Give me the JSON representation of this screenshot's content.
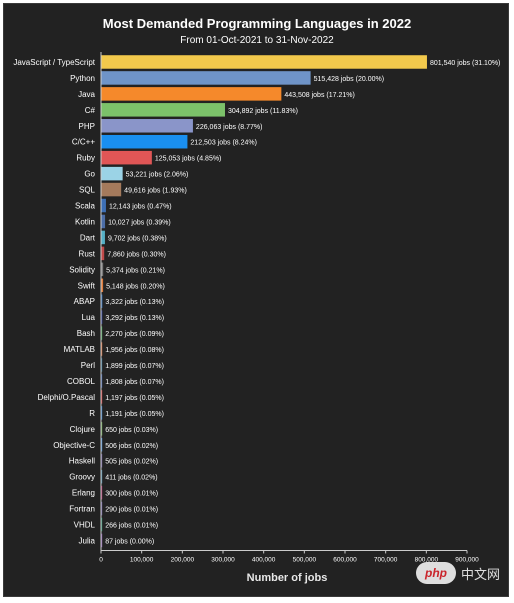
{
  "chart_data": {
    "type": "bar",
    "orientation": "horizontal",
    "title": "Most Demanded Programming Languages in 2022",
    "subtitle": "From 01-Oct-2021 to 31-Nov-2022",
    "xlabel": "Number of jobs",
    "ylabel": "",
    "xlim": [
      0,
      900000
    ],
    "xticks": [
      0,
      100000,
      200000,
      300000,
      400000,
      500000,
      600000,
      700000,
      800000,
      900000
    ],
    "xtick_labels": [
      "0",
      "100,000",
      "200,000",
      "300,000",
      "400,000",
      "500,000",
      "600,000",
      "700,000",
      "800,000",
      "900,000"
    ],
    "grid": false,
    "legend": "none",
    "categories": [
      "JavaScript / TypeScript",
      "Python",
      "Java",
      "C#",
      "PHP",
      "C/C++",
      "Ruby",
      "Go",
      "SQL",
      "Scala",
      "Kotlin",
      "Dart",
      "Rust",
      "Solidity",
      "Swift",
      "ABAP",
      "Lua",
      "Bash",
      "MATLAB",
      "Perl",
      "COBOL",
      "Delphi/O.Pascal",
      "R",
      "Clojure",
      "Objective-C",
      "Haskell",
      "Groovy",
      "Erlang",
      "Fortran",
      "VHDL",
      "Julia"
    ],
    "values": [
      801540,
      515428,
      443508,
      304892,
      226063,
      212503,
      125053,
      53221,
      49616,
      12143,
      10027,
      9702,
      7860,
      5374,
      5148,
      3322,
      3292,
      2270,
      1956,
      1899,
      1808,
      1197,
      1191,
      650,
      506,
      505,
      411,
      300,
      290,
      266,
      87
    ],
    "data_labels": [
      "801,540 jobs (31.10%)",
      "515,428 jobs (20.00%)",
      "443,508 jobs (17.21%)",
      "304,892 jobs (11.83%)",
      "226,063 jobs (8.77%)",
      "212,503 jobs (8.24%)",
      "125,053 jobs (4.85%)",
      "53,221 jobs (2.06%)",
      "49,616 jobs (1.93%)",
      "12,143 jobs (0.47%)",
      "10,027 jobs (0.39%)",
      "9,702 jobs (0.38%)",
      "7,860 jobs (0.30%)",
      "5,374 jobs (0.21%)",
      "5,148 jobs (0.20%)",
      "3,322 jobs (0.13%)",
      "3,292 jobs (0.13%)",
      "2,270 jobs (0.09%)",
      "1,956 jobs (0.08%)",
      "1,899 jobs (0.07%)",
      "1,808 jobs (0.07%)",
      "1,197 jobs (0.05%)",
      "1,191 jobs (0.05%)",
      "650 jobs (0.03%)",
      "506 jobs (0.02%)",
      "505 jobs (0.02%)",
      "411 jobs (0.02%)",
      "300 jobs (0.01%)",
      "290 jobs (0.01%)",
      "266 jobs (0.01%)",
      "87 jobs (0.00%)"
    ],
    "colors": [
      "#f2c94c",
      "#6f94c8",
      "#f5892b",
      "#7cc26a",
      "#8a95c9",
      "#1a8ff0",
      "#e05656",
      "#9bd3e6",
      "#a47a5c",
      "#3d6fb5",
      "#4c6ea8",
      "#56b0c6",
      "#c04a4a",
      "#7a7a7a",
      "#e07b3a",
      "#2e6db3",
      "#2a3d8f",
      "#3d9a4a",
      "#d86e3a",
      "#2f6e8e",
      "#3b5ea8",
      "#d83a3a",
      "#2f79c2",
      "#6aa84f",
      "#4a90d9",
      "#6b5a9a",
      "#4a8aa8",
      "#b0306a",
      "#6c5ea0",
      "#2a8a6a",
      "#8a5cb0"
    ]
  },
  "watermark": {
    "logo_text": "php",
    "site_text": "中文网"
  },
  "colors": {
    "background": "#222222",
    "text": "#ffffff",
    "axis": "#cccccc"
  }
}
